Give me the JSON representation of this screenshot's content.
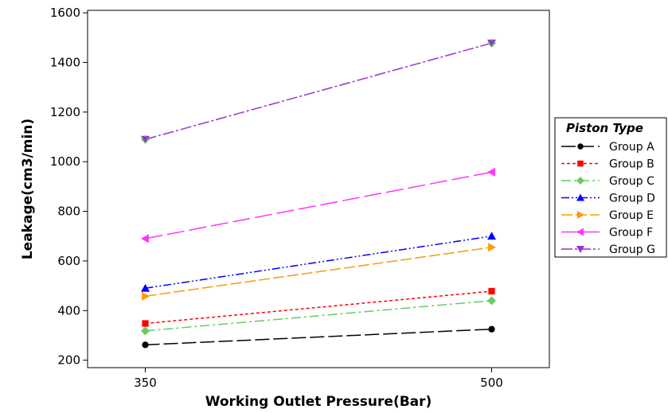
{
  "chart_data": {
    "type": "line",
    "x": [
      350,
      500
    ],
    "xlabel": "Working Outlet Pressure(Bar)",
    "ylabel": "Leakage(cm3/min)",
    "xlim": [
      325,
      525
    ],
    "ylim": [
      170,
      1610
    ],
    "yticks": [
      200,
      400,
      600,
      800,
      1000,
      1200,
      1400,
      1600
    ],
    "xticks": [
      350,
      500
    ],
    "legend": {
      "title": "Piston Type",
      "placement": "right"
    },
    "series": [
      {
        "name": "Group A",
        "values": [
          262,
          325
        ],
        "color": "#000000",
        "marker": "circle",
        "dash": "long"
      },
      {
        "name": "Group B",
        "values": [
          348,
          478
        ],
        "color": "#ff0000",
        "marker": "square",
        "dash": "short"
      },
      {
        "name": "Group C",
        "values": [
          318,
          440
        ],
        "color": "#66cc66",
        "marker": "diamond",
        "dash": "dashdot"
      },
      {
        "name": "Group D",
        "values": [
          490,
          700
        ],
        "color": "#0000ff",
        "marker": "triangle-up",
        "dash": "dashdotdot"
      },
      {
        "name": "Group E",
        "values": [
          458,
          655
        ],
        "color": "#ff9900",
        "marker": "triangle-right",
        "dash": "longdash"
      },
      {
        "name": "Group F",
        "values": [
          690,
          958
        ],
        "color": "#ff33ff",
        "marker": "triangle-left",
        "dash": "longer"
      },
      {
        "name": "Group G",
        "values": [
          1090,
          1478
        ],
        "color": "#9933cc",
        "marker": "triangle-down",
        "dash": "dashdot2"
      }
    ],
    "grid": false
  }
}
